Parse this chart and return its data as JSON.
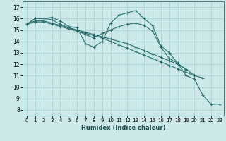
{
  "xlabel": "Humidex (Indice chaleur)",
  "xlim": [
    -0.5,
    23.5
  ],
  "ylim": [
    7.5,
    17.5
  ],
  "yticks": [
    8,
    9,
    10,
    11,
    12,
    13,
    14,
    15,
    16,
    17
  ],
  "xticks": [
    0,
    1,
    2,
    3,
    4,
    5,
    6,
    7,
    8,
    9,
    10,
    11,
    12,
    13,
    14,
    15,
    16,
    17,
    18,
    19,
    20,
    21,
    22,
    23
  ],
  "bg_color": "#cce8e8",
  "grid_color": "#aad4d4",
  "line_color": "#2d6e6e",
  "series": [
    {
      "x": [
        0,
        1,
        2,
        3,
        4,
        5,
        6,
        7,
        8,
        9,
        10,
        11,
        12,
        13,
        14,
        15,
        16,
        17,
        18,
        19,
        20,
        21,
        22,
        23
      ],
      "y": [
        15.5,
        16.0,
        16.0,
        16.1,
        15.8,
        15.3,
        15.2,
        13.8,
        13.5,
        14.0,
        15.6,
        16.3,
        16.5,
        16.7,
        16.0,
        15.4,
        13.6,
        13.0,
        12.1,
        11.0,
        10.7,
        9.3,
        8.5,
        8.5
      ]
    },
    {
      "x": [
        0,
        1,
        2,
        3,
        4,
        5,
        6,
        7,
        8,
        9,
        10,
        11,
        12,
        13,
        14,
        15,
        16,
        17,
        18,
        19
      ],
      "y": [
        15.5,
        16.0,
        16.0,
        15.9,
        15.5,
        15.2,
        14.9,
        14.6,
        14.3,
        14.7,
        15.0,
        15.3,
        15.5,
        15.6,
        15.4,
        14.9,
        13.5,
        12.5,
        12.1,
        11.5
      ]
    },
    {
      "x": [
        0,
        1,
        2,
        3,
        4,
        5,
        6,
        7,
        8,
        9,
        10,
        11,
        12,
        13,
        14,
        15,
        16,
        17,
        18,
        19,
        20,
        21
      ],
      "y": [
        15.5,
        15.8,
        15.8,
        15.6,
        15.4,
        15.2,
        15.0,
        14.8,
        14.6,
        14.4,
        14.2,
        14.0,
        13.8,
        13.5,
        13.2,
        12.9,
        12.6,
        12.3,
        12.0,
        11.6,
        11.0,
        10.8
      ]
    },
    {
      "x": [
        0,
        1,
        2,
        3,
        4,
        5,
        6,
        7,
        8,
        9,
        10,
        11,
        12,
        13,
        14,
        15,
        16,
        17,
        18,
        19,
        20
      ],
      "y": [
        15.5,
        15.7,
        15.7,
        15.5,
        15.3,
        15.1,
        14.9,
        14.7,
        14.5,
        14.3,
        14.0,
        13.7,
        13.4,
        13.1,
        12.8,
        12.5,
        12.2,
        11.9,
        11.6,
        11.3,
        11.0
      ]
    }
  ]
}
